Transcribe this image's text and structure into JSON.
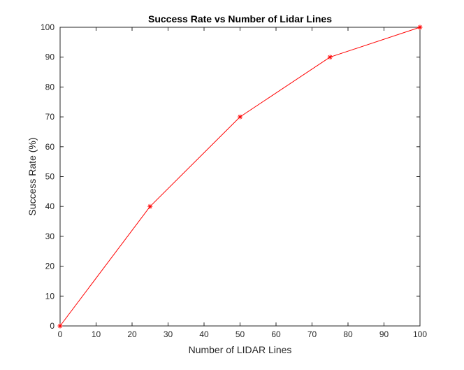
{
  "chart_data": {
    "type": "line",
    "title": "Success Rate vs Number of Lidar Lines",
    "xlabel": "Number of LIDAR Lines",
    "ylabel": "Success Rate (%)",
    "xlim": [
      0,
      100
    ],
    "ylim": [
      0,
      100
    ],
    "xticks": [
      "0",
      "10",
      "20",
      "30",
      "40",
      "50",
      "60",
      "70",
      "80",
      "90",
      "100"
    ],
    "yticks": [
      "0",
      "10",
      "20",
      "30",
      "40",
      "50",
      "60",
      "70",
      "80",
      "90",
      "100"
    ],
    "grid": false,
    "series": [
      {
        "x": [
          0,
          25,
          50,
          75,
          100
        ],
        "y": [
          0,
          40,
          70,
          90,
          100
        ],
        "color": "#ff0000",
        "marker": "asterisk"
      }
    ]
  }
}
